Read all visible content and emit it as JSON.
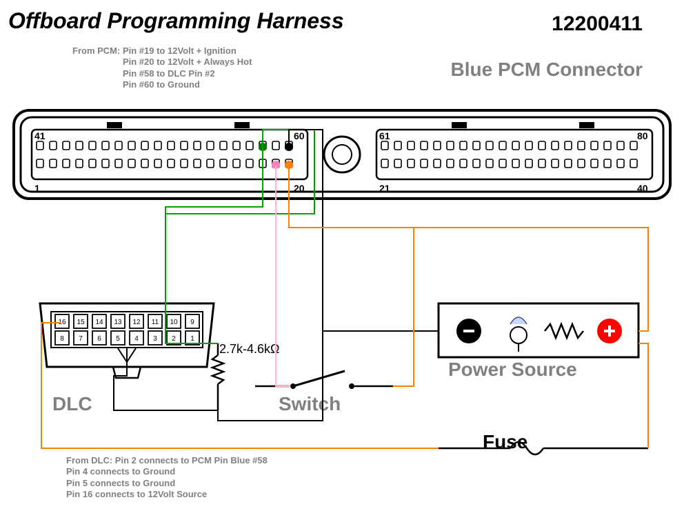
{
  "title": "Offboard Programming Harness",
  "part_number": "12200411",
  "subtitle": "Blue PCM Connector",
  "colors": {
    "gray_text": "#808080",
    "wire_green": "#00a000",
    "wire_pink": "#ffb0d0",
    "wire_orange": "#ff8000",
    "wire_black": "#000000",
    "dot_green": "#008000",
    "dot_pink": "#ff80c0",
    "dot_orange": "#ff8000",
    "dot_black": "#000000",
    "minus_fill": "#000000",
    "plus_fill": "#ff0000"
  },
  "pcm_notes": {
    "head": "From PCM:",
    "lines": [
      "Pin #19 to 12Volt + Ignition",
      "Pin #20 to 12Volt + Always Hot",
      "Pin #58 to DLC Pin #2",
      "Pin #60 to Ground"
    ]
  },
  "dlc_notes": {
    "head": "From DLC:",
    "lines": [
      "Pin 2    connects to PCM Pin Blue #58",
      "Pin 4    connects to Ground",
      "Pin 5    connects to Ground",
      "Pin 16   connects to 12Volt Source"
    ]
  },
  "labels": {
    "dlc": "DLC",
    "switch": "Switch",
    "power_source": "Power Source",
    "fuse": "Fuse",
    "resistor_range": "2.7k-4.6kΩ"
  },
  "connector": {
    "pin_labels": [
      "41",
      "60",
      "61",
      "80",
      "1",
      "20",
      "21",
      "40"
    ],
    "rows_per_block": 2,
    "cols_per_block": 20
  },
  "dlc_pins_top": [
    "16",
    "15",
    "14",
    "13",
    "12",
    "11",
    "10",
    "9"
  ],
  "dlc_pins_bot": [
    "8",
    "7",
    "6",
    "5",
    "4",
    "3",
    "2",
    "1"
  ],
  "line_widths": {
    "wire": 2,
    "outline": 3
  }
}
